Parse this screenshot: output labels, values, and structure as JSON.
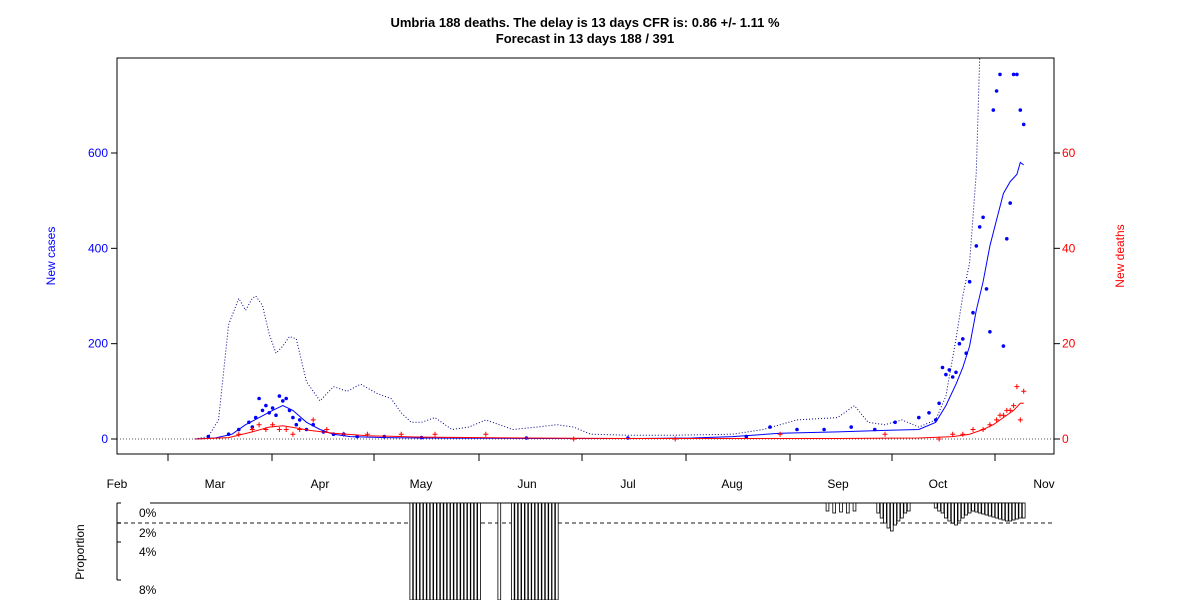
{
  "chart_data": {
    "type": "line",
    "title": "Umbria 188 deaths. The delay is 13 days CFR is: 0.86 +/- 1.11 %",
    "subtitle": "Forecast in 13 days 188 / 391",
    "ylabel_left": "New cases",
    "ylabel_right": "New deaths",
    "ylim_left": [
      -30,
      800
    ],
    "ylim_right": [
      -3,
      80
    ],
    "left_ticks": [
      "0",
      "200",
      "400",
      "600"
    ],
    "right_ticks": [
      "0",
      "20",
      "40",
      "60"
    ],
    "month_labels": [
      "Feb",
      "Mar",
      "Apr",
      "May",
      "Jun",
      "Jul",
      "Aug",
      "Sep",
      "Oct",
      "Nov"
    ],
    "colors": {
      "cases": "#0000ff",
      "deaths": "#ff0000",
      "forecast": "#00008b",
      "axis": "#000000",
      "grid": "#555555"
    },
    "x_date_range": [
      "2020-02-01",
      "2020-11-01"
    ],
    "series": [
      {
        "name": "",
        "kind": "cases-points",
        "dates": [
          "2020-02-28",
          "2020-03-05",
          "2020-03-08",
          "2020-03-11",
          "2020-03-12",
          "2020-03-13",
          "2020-03-14",
          "2020-03-15",
          "2020-03-16",
          "2020-03-17",
          "2020-03-18",
          "2020-03-19",
          "2020-03-20",
          "2020-03-21",
          "2020-03-22",
          "2020-03-23",
          "2020-03-24",
          "2020-03-25",
          "2020-03-26",
          "2020-03-28",
          "2020-03-30",
          "2020-04-02",
          "2020-04-05",
          "2020-04-08",
          "2020-04-12",
          "2020-04-20",
          "2020-05-01",
          "2020-06-01",
          "2020-07-01",
          "2020-08-05",
          "2020-08-12",
          "2020-08-20",
          "2020-08-28",
          "2020-09-05",
          "2020-09-12",
          "2020-09-18",
          "2020-09-25",
          "2020-09-28",
          "2020-09-30",
          "2020-10-01",
          "2020-10-02",
          "2020-10-03",
          "2020-10-04",
          "2020-10-05",
          "2020-10-06",
          "2020-10-07",
          "2020-10-08",
          "2020-10-09",
          "2020-10-10",
          "2020-10-11",
          "2020-10-12",
          "2020-10-13",
          "2020-10-14",
          "2020-10-15",
          "2020-10-16",
          "2020-10-17",
          "2020-10-18",
          "2020-10-19",
          "2020-10-20",
          "2020-10-21",
          "2020-10-22",
          "2020-10-23",
          "2020-10-24",
          "2020-10-25",
          "2020-10-26"
        ],
        "values": [
          5,
          10,
          20,
          35,
          25,
          45,
          85,
          60,
          70,
          55,
          65,
          50,
          90,
          80,
          85,
          60,
          45,
          30,
          40,
          20,
          30,
          15,
          10,
          10,
          5,
          5,
          3,
          2,
          2,
          5,
          25,
          20,
          20,
          25,
          20,
          35,
          45,
          55,
          40,
          75,
          150,
          135,
          145,
          130,
          140,
          200,
          210,
          180,
          330,
          265,
          405,
          445,
          465,
          315,
          225,
          690,
          730,
          765,
          195,
          420,
          495,
          765,
          765,
          690,
          660
        ]
      },
      {
        "name": "",
        "kind": "cases-smooth",
        "dates": [
          "2020-02-24",
          "2020-03-01",
          "2020-03-06",
          "2020-03-10",
          "2020-03-14",
          "2020-03-18",
          "2020-03-21",
          "2020-03-24",
          "2020-03-28",
          "2020-04-01",
          "2020-04-05",
          "2020-04-10",
          "2020-04-20",
          "2020-05-01",
          "2020-06-01",
          "2020-07-01",
          "2020-07-20",
          "2020-08-01",
          "2020-08-15",
          "2020-09-01",
          "2020-09-15",
          "2020-09-25",
          "2020-09-30",
          "2020-10-03",
          "2020-10-06",
          "2020-10-08",
          "2020-10-10",
          "2020-10-12",
          "2020-10-14",
          "2020-10-16",
          "2020-10-18",
          "2020-10-20",
          "2020-10-22",
          "2020-10-24",
          "2020-10-25",
          "2020-10-26"
        ],
        "values": [
          0,
          2,
          10,
          30,
          45,
          60,
          70,
          60,
          35,
          20,
          10,
          5,
          3,
          2,
          1,
          1,
          2,
          5,
          12,
          15,
          18,
          20,
          35,
          70,
          115,
          150,
          195,
          270,
          330,
          405,
          460,
          515,
          540,
          555,
          580,
          575
        ]
      },
      {
        "name": "",
        "kind": "deaths-points",
        "dates": [
          "2020-03-08",
          "2020-03-12",
          "2020-03-14",
          "2020-03-16",
          "2020-03-18",
          "2020-03-20",
          "2020-03-22",
          "2020-03-24",
          "2020-03-26",
          "2020-03-30",
          "2020-04-03",
          "2020-04-08",
          "2020-04-15",
          "2020-04-25",
          "2020-05-05",
          "2020-05-20",
          "2020-06-15",
          "2020-07-15",
          "2020-08-15",
          "2020-09-15",
          "2020-10-01",
          "2020-10-05",
          "2020-10-08",
          "2020-10-11",
          "2020-10-14",
          "2020-10-16",
          "2020-10-18",
          "2020-10-19",
          "2020-10-20",
          "2020-10-21",
          "2020-10-22",
          "2020-10-23",
          "2020-10-24",
          "2020-10-25",
          "2020-10-26"
        ],
        "values": [
          1,
          2,
          3,
          2,
          3,
          2,
          2,
          1,
          2,
          4,
          2,
          1,
          1,
          1,
          1,
          1,
          0,
          0,
          1,
          1,
          0,
          1,
          1,
          2,
          2,
          3,
          4,
          5,
          5,
          6,
          6,
          7,
          11,
          4,
          10
        ]
      },
      {
        "name": "",
        "kind": "deaths-smooth",
        "dates": [
          "2020-02-24",
          "2020-03-05",
          "2020-03-12",
          "2020-03-17",
          "2020-03-21",
          "2020-03-25",
          "2020-03-29",
          "2020-04-05",
          "2020-04-15",
          "2020-05-01",
          "2020-06-01",
          "2020-07-01",
          "2020-08-01",
          "2020-09-01",
          "2020-09-25",
          "2020-10-05",
          "2020-10-10",
          "2020-10-14",
          "2020-10-17",
          "2020-10-20",
          "2020-10-23",
          "2020-10-25",
          "2020-10-26"
        ],
        "values": [
          0,
          0.3,
          1.5,
          2.5,
          2.8,
          2.3,
          1.8,
          1.2,
          0.7,
          0.4,
          0.2,
          0.1,
          0.1,
          0.1,
          0.2,
          0.5,
          1,
          2,
          3,
          4.5,
          6,
          7.5,
          7.5
        ]
      },
      {
        "name": "",
        "kind": "forecast-upper",
        "dates": [
          "2020-02-24",
          "2020-02-28",
          "2020-03-02",
          "2020-03-05",
          "2020-03-08",
          "2020-03-10",
          "2020-03-12",
          "2020-03-13",
          "2020-03-15",
          "2020-03-17",
          "2020-03-19",
          "2020-03-21",
          "2020-03-23",
          "2020-03-25",
          "2020-03-28",
          "2020-04-01",
          "2020-04-05",
          "2020-04-09",
          "2020-04-13",
          "2020-04-18",
          "2020-04-22",
          "2020-04-25",
          "2020-04-28",
          "2020-05-01",
          "2020-05-05",
          "2020-05-10",
          "2020-05-15",
          "2020-05-20",
          "2020-05-28",
          "2020-06-04",
          "2020-06-10",
          "2020-06-15",
          "2020-06-20",
          "2020-07-01",
          "2020-07-15",
          "2020-08-01",
          "2020-08-10",
          "2020-08-20",
          "2020-09-01",
          "2020-09-06",
          "2020-09-10",
          "2020-09-15",
          "2020-09-20",
          "2020-09-25",
          "2020-09-30",
          "2020-10-03",
          "2020-10-06",
          "2020-10-08",
          "2020-10-10",
          "2020-10-12",
          "2020-10-13"
        ],
        "values": [
          0,
          5,
          40,
          240,
          295,
          270,
          295,
          300,
          280,
          220,
          180,
          195,
          215,
          210,
          120,
          80,
          110,
          100,
          115,
          95,
          85,
          55,
          35,
          35,
          45,
          20,
          25,
          40,
          20,
          25,
          30,
          25,
          10,
          8,
          8,
          10,
          20,
          40,
          45,
          70,
          35,
          30,
          40,
          25,
          40,
          90,
          210,
          300,
          370,
          560,
          800
        ]
      }
    ],
    "proportion_panel": {
      "ylabel": "Proportion",
      "ticks": [
        "0%",
        "2%",
        "4%",
        "8%"
      ],
      "reference_value": 2,
      "bars": [
        {
          "date": "2020-04-28",
          "value": 10
        },
        {
          "date": "2020-04-29",
          "value": 12
        },
        {
          "date": "2020-04-30",
          "value": 14
        },
        {
          "date": "2020-05-01",
          "value": 13
        },
        {
          "date": "2020-05-02",
          "value": 15
        },
        {
          "date": "2020-05-03",
          "value": 18
        },
        {
          "date": "2020-05-04",
          "value": 16
        },
        {
          "date": "2020-05-05",
          "value": 14
        },
        {
          "date": "2020-05-06",
          "value": 20
        },
        {
          "date": "2020-05-07",
          "value": 12
        },
        {
          "date": "2020-05-08",
          "value": 15
        },
        {
          "date": "2020-05-09",
          "value": 22
        },
        {
          "date": "2020-05-10",
          "value": 18
        },
        {
          "date": "2020-05-11",
          "value": 25
        },
        {
          "date": "2020-05-12",
          "value": 30
        },
        {
          "date": "2020-05-13",
          "value": 28
        },
        {
          "date": "2020-05-14",
          "value": 25
        },
        {
          "date": "2020-05-15",
          "value": 30
        },
        {
          "date": "2020-05-16",
          "value": 35
        },
        {
          "date": "2020-05-17",
          "value": 30
        },
        {
          "date": "2020-05-18",
          "value": 25
        },
        {
          "date": "2020-05-24",
          "value": 25
        },
        {
          "date": "2020-05-28",
          "value": 35
        },
        {
          "date": "2020-05-29",
          "value": 38
        },
        {
          "date": "2020-05-30",
          "value": 40
        },
        {
          "date": "2020-05-31",
          "value": 42
        },
        {
          "date": "2020-06-01",
          "value": 40
        },
        {
          "date": "2020-06-02",
          "value": 45
        },
        {
          "date": "2020-06-03",
          "value": 42
        },
        {
          "date": "2020-06-04",
          "value": 44
        },
        {
          "date": "2020-06-05",
          "value": 48
        },
        {
          "date": "2020-06-06",
          "value": 46
        },
        {
          "date": "2020-06-07",
          "value": 50
        },
        {
          "date": "2020-06-08",
          "value": 48
        },
        {
          "date": "2020-06-09",
          "value": 45
        },
        {
          "date": "2020-06-10",
          "value": 44
        },
        {
          "date": "2020-08-29",
          "value": 0.8
        },
        {
          "date": "2020-08-31",
          "value": 1.0
        },
        {
          "date": "2020-09-02",
          "value": 0.9
        },
        {
          "date": "2020-09-04",
          "value": 1.0
        },
        {
          "date": "2020-09-06",
          "value": 0.8
        },
        {
          "date": "2020-09-13",
          "value": 1.0
        },
        {
          "date": "2020-09-14",
          "value": 1.5
        },
        {
          "date": "2020-09-15",
          "value": 2.0
        },
        {
          "date": "2020-09-16",
          "value": 2.5
        },
        {
          "date": "2020-09-17",
          "value": 2.8
        },
        {
          "date": "2020-09-18",
          "value": 2.2
        },
        {
          "date": "2020-09-19",
          "value": 1.8
        },
        {
          "date": "2020-09-20",
          "value": 1.5
        },
        {
          "date": "2020-09-21",
          "value": 1.0
        },
        {
          "date": "2020-09-22",
          "value": 0.8
        },
        {
          "date": "2020-09-30",
          "value": 0.5
        },
        {
          "date": "2020-10-01",
          "value": 0.8
        },
        {
          "date": "2020-10-02",
          "value": 1.0
        },
        {
          "date": "2020-10-03",
          "value": 1.5
        },
        {
          "date": "2020-10-04",
          "value": 1.8
        },
        {
          "date": "2020-10-05",
          "value": 2.0
        },
        {
          "date": "2020-10-06",
          "value": 2.2
        },
        {
          "date": "2020-10-07",
          "value": 1.8
        },
        {
          "date": "2020-10-08",
          "value": 1.5
        },
        {
          "date": "2020-10-09",
          "value": 1.2
        },
        {
          "date": "2020-10-10",
          "value": 1.0
        },
        {
          "date": "2020-10-11",
          "value": 0.8
        },
        {
          "date": "2020-10-12",
          "value": 0.9
        },
        {
          "date": "2020-10-13",
          "value": 1.0
        },
        {
          "date": "2020-10-14",
          "value": 1.1
        },
        {
          "date": "2020-10-15",
          "value": 1.2
        },
        {
          "date": "2020-10-16",
          "value": 1.3
        },
        {
          "date": "2020-10-17",
          "value": 1.4
        },
        {
          "date": "2020-10-18",
          "value": 1.5
        },
        {
          "date": "2020-10-19",
          "value": 1.6
        },
        {
          "date": "2020-10-20",
          "value": 1.7
        },
        {
          "date": "2020-10-21",
          "value": 1.8
        },
        {
          "date": "2020-10-22",
          "value": 1.8
        },
        {
          "date": "2020-10-23",
          "value": 1.7
        },
        {
          "date": "2020-10-24",
          "value": 1.6
        },
        {
          "date": "2020-10-25",
          "value": 1.5
        },
        {
          "date": "2020-10-26",
          "value": 1.5
        }
      ]
    }
  }
}
